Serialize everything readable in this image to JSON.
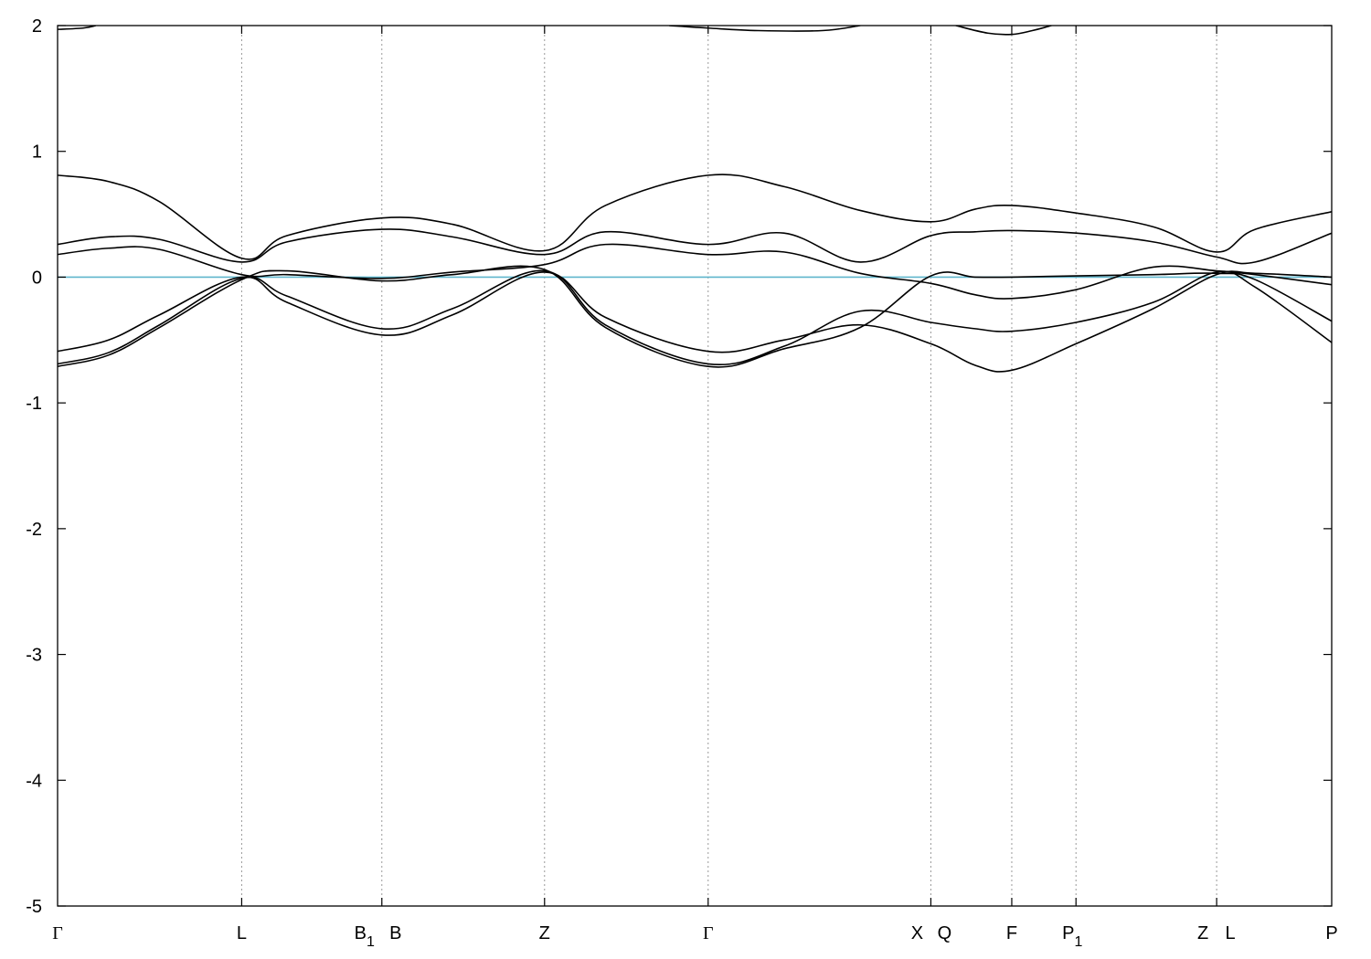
{
  "chart_data": {
    "type": "line",
    "title": "",
    "xlabel": "",
    "ylabel": "",
    "ylim": [
      -5,
      2
    ],
    "xlim": [
      0,
      1
    ],
    "yticks": [
      "2",
      "1",
      "0",
      "-1",
      "-2",
      "-3",
      "-4",
      "-5"
    ],
    "ytick_values": [
      2,
      1,
      0,
      -1,
      -2,
      -3,
      -4,
      -5
    ],
    "grid": "vertical dotted lines at high-symmetry points",
    "fermi_level": 0,
    "colors": {
      "bands": "#000000",
      "fermi": "#5fb6cc",
      "grid": "#9a9a9a",
      "frame": "#000000"
    },
    "high_symmetry_points": [
      {
        "label": "Γ",
        "sub": "",
        "x": 0.0,
        "line": false
      },
      {
        "label": "L",
        "sub": "",
        "x": 0.1445,
        "line": true
      },
      {
        "label": "B",
        "sub": "1",
        "x": 0.2545,
        "line": true
      },
      {
        "label": "B",
        "sub": "",
        "x": 0.2545,
        "line": false
      },
      {
        "label": "Z",
        "sub": "",
        "x": 0.3822,
        "line": true
      },
      {
        "label": "Γ",
        "sub": "",
        "x": 0.5106,
        "line": true
      },
      {
        "label": "X",
        "sub": "",
        "x": 0.6854,
        "line": true
      },
      {
        "label": "Q",
        "sub": "",
        "x": 0.6854,
        "line": false
      },
      {
        "label": "F",
        "sub": "",
        "x": 0.7489,
        "line": true
      },
      {
        "label": "P",
        "sub": "1",
        "x": 0.7993,
        "line": true
      },
      {
        "label": "Z",
        "sub": "",
        "x": 0.9097,
        "line": true
      },
      {
        "label": "L",
        "sub": "",
        "x": 0.9097,
        "line": false
      },
      {
        "label": "P",
        "sub": "",
        "x": 1.0,
        "line": false
      }
    ],
    "series": [
      {
        "x": [
          0,
          0.04,
          0.08,
          0.1445,
          0.18,
          0.2545,
          0.31,
          0.3822,
          0.43,
          0.5106,
          0.57,
          0.63,
          0.6854,
          0.72,
          0.7489,
          0.7993,
          0.86,
          0.9097,
          0.94,
          1.0
        ],
        "values": [
          -0.71,
          -0.62,
          -0.4,
          -0.02,
          0.05,
          -0.03,
          0.02,
          0.06,
          -0.4,
          -0.71,
          -0.57,
          -0.4,
          0.01,
          0.0,
          0.0,
          0.01,
          0.02,
          0.03,
          -0.02,
          -0.35
        ]
      },
      {
        "x": [
          0,
          0.04,
          0.08,
          0.1445,
          0.18,
          0.2545,
          0.31,
          0.3822,
          0.43,
          0.5106,
          0.57,
          0.63,
          0.6854,
          0.72,
          0.7489,
          0.7993,
          0.86,
          0.9097,
          0.94,
          1.0
        ],
        "values": [
          -0.69,
          -0.6,
          -0.38,
          -0.01,
          -0.15,
          -0.41,
          -0.25,
          0.05,
          -0.38,
          -0.69,
          -0.55,
          -0.27,
          -0.36,
          -0.41,
          -0.43,
          -0.36,
          -0.2,
          0.04,
          -0.08,
          -0.52
        ]
      },
      {
        "x": [
          0,
          0.04,
          0.08,
          0.1445,
          0.18,
          0.2545,
          0.31,
          0.3822,
          0.43,
          0.5106,
          0.57,
          0.63,
          0.6854,
          0.72,
          0.7489,
          0.7993,
          0.86,
          0.9097,
          0.94,
          1.0
        ],
        "values": [
          -0.59,
          -0.5,
          -0.3,
          0.0,
          -0.2,
          -0.46,
          -0.3,
          0.04,
          -0.32,
          -0.59,
          -0.5,
          -0.38,
          -0.53,
          -0.7,
          -0.74,
          -0.53,
          -0.25,
          0.02,
          0.03,
          0.0
        ]
      },
      {
        "x": [
          0,
          0.04,
          0.08,
          0.1445,
          0.18,
          0.2545,
          0.31,
          0.3822,
          0.43,
          0.5106,
          0.57,
          0.63,
          0.6854,
          0.72,
          0.7489,
          0.7993,
          0.86,
          0.9097,
          0.94,
          1.0
        ],
        "values": [
          0.18,
          0.23,
          0.22,
          0.02,
          0.02,
          -0.01,
          0.04,
          0.1,
          0.26,
          0.18,
          0.2,
          0.03,
          -0.05,
          -0.14,
          -0.17,
          -0.1,
          0.08,
          0.05,
          0.02,
          -0.06
        ]
      },
      {
        "x": [
          0,
          0.04,
          0.08,
          0.1445,
          0.18,
          0.2545,
          0.31,
          0.3822,
          0.43,
          0.5106,
          0.57,
          0.63,
          0.6854,
          0.72,
          0.7489,
          0.7993,
          0.86,
          0.9097,
          0.94,
          1.0
        ],
        "values": [
          0.26,
          0.32,
          0.3,
          0.12,
          0.28,
          0.38,
          0.32,
          0.18,
          0.36,
          0.26,
          0.35,
          0.12,
          0.33,
          0.36,
          0.37,
          0.35,
          0.28,
          0.16,
          0.12,
          0.35
        ]
      },
      {
        "x": [
          0,
          0.04,
          0.08,
          0.1445,
          0.18,
          0.2545,
          0.31,
          0.3822,
          0.43,
          0.5106,
          0.57,
          0.63,
          0.6854,
          0.72,
          0.7489,
          0.7993,
          0.86,
          0.9097,
          0.94,
          1.0
        ],
        "values": [
          0.81,
          0.76,
          0.6,
          0.15,
          0.33,
          0.47,
          0.42,
          0.21,
          0.57,
          0.81,
          0.72,
          0.53,
          0.44,
          0.54,
          0.57,
          0.51,
          0.4,
          0.2,
          0.38,
          0.52
        ]
      },
      {
        "x": [
          0,
          0.02,
          0.03
        ],
        "values": [
          1.97,
          1.98,
          2.0
        ]
      },
      {
        "x": [
          0.48,
          0.5106,
          0.55,
          0.6,
          0.63
        ],
        "values": [
          2.0,
          1.98,
          1.96,
          1.96,
          2.0
        ]
      },
      {
        "x": [
          0.705,
          0.73,
          0.7489,
          0.765,
          0.78
        ],
        "values": [
          2.0,
          1.94,
          1.93,
          1.96,
          2.0
        ]
      }
    ]
  }
}
